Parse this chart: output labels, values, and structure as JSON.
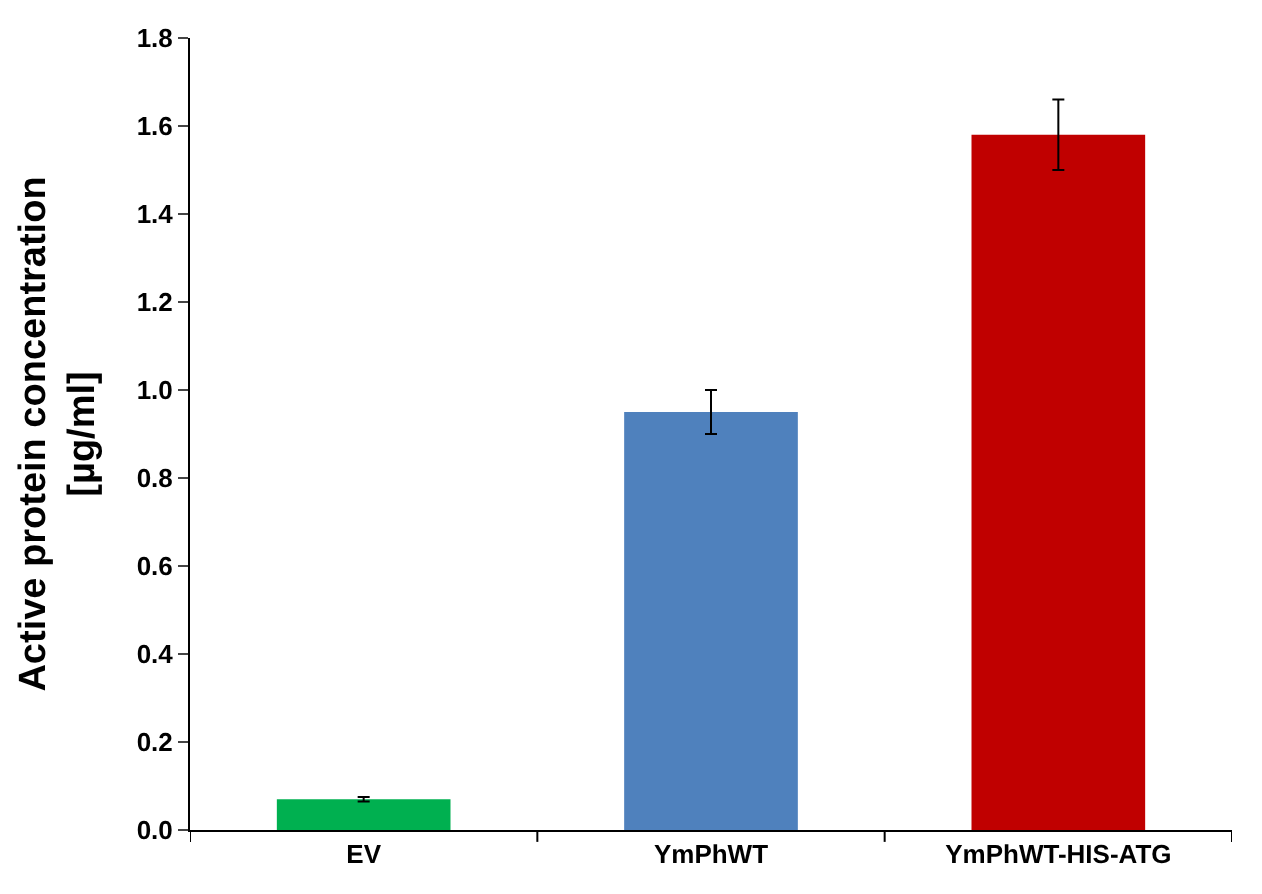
{
  "chart_data": {
    "type": "bar",
    "ylabel": "Active protein concentration\n[µg/ml]",
    "categories": [
      "EV",
      "YmPhWT",
      "YmPhWT-HIS-ATG"
    ],
    "values": [
      0.07,
      0.95,
      1.58
    ],
    "colors": [
      "#00b050",
      "#4f81bd",
      "#c00000"
    ],
    "errors": [
      0.005,
      0.05,
      0.08
    ],
    "ylim": [
      0,
      1.8
    ],
    "yticks": [
      {
        "value": 0,
        "label": "0.0"
      },
      {
        "value": 0.2,
        "label": "0.2"
      },
      {
        "value": 0.4,
        "label": "0.4"
      },
      {
        "value": 0.6,
        "label": "0.6"
      },
      {
        "value": 0.8,
        "label": "0.8"
      },
      {
        "value": 1.0,
        "label": "1.0"
      },
      {
        "value": 1.2,
        "label": "1.2"
      },
      {
        "value": 1.4,
        "label": "1.4"
      },
      {
        "value": 1.6,
        "label": "1.6"
      },
      {
        "value": 1.8,
        "label": "1.8"
      }
    ],
    "legend": false
  }
}
